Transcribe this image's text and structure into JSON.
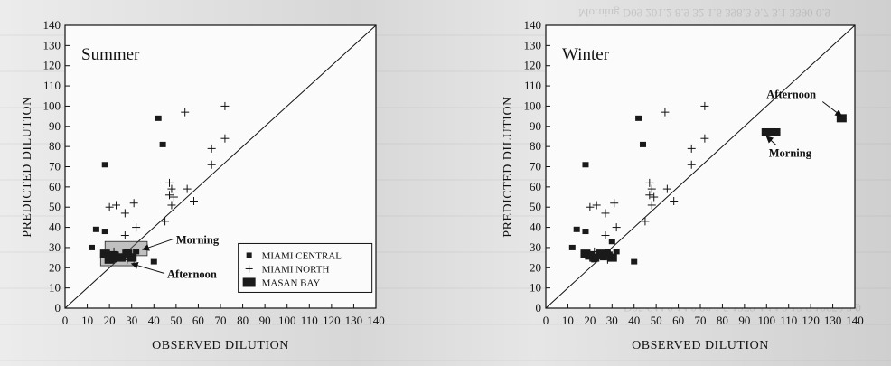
{
  "chart_data": [
    {
      "type": "scatter",
      "title": "Summer",
      "xlabel": "OBSERVED DILUTION",
      "ylabel": "PREDICTED DILUTION",
      "xlim": [
        0,
        140
      ],
      "ylim": [
        0,
        140
      ],
      "xticks": [
        0,
        10,
        20,
        30,
        40,
        50,
        60,
        70,
        80,
        90,
        100,
        110,
        120,
        130,
        140
      ],
      "yticks": [
        0,
        10,
        20,
        30,
        40,
        50,
        60,
        70,
        80,
        90,
        100,
        110,
        120,
        130,
        140
      ],
      "reference_line": "1:1",
      "legend_position": "bottom-right",
      "series": [
        {
          "name": "MIAMI CENTRAL",
          "marker": "square",
          "points": [
            [
              42,
              94
            ],
            [
              44,
              81
            ],
            [
              18,
              71
            ],
            [
              14,
              39
            ],
            [
              18,
              38
            ],
            [
              12,
              30
            ],
            [
              28,
              28
            ],
            [
              40,
              23
            ],
            [
              22,
              24
            ],
            [
              26,
              25
            ],
            [
              32,
              28
            ]
          ]
        },
        {
          "name": "MIAMI NORTH",
          "marker": "plus",
          "points": [
            [
              72,
              100
            ],
            [
              54,
              97
            ],
            [
              72,
              84
            ],
            [
              66,
              79
            ],
            [
              66,
              71
            ],
            [
              47,
              62
            ],
            [
              48,
              59
            ],
            [
              47,
              56
            ],
            [
              49,
              55
            ],
            [
              55,
              59
            ],
            [
              58,
              53
            ],
            [
              48,
              51
            ],
            [
              31,
              52
            ],
            [
              20,
              50
            ],
            [
              23,
              51
            ],
            [
              27,
              47
            ],
            [
              32,
              40
            ],
            [
              45,
              43
            ],
            [
              27,
              36
            ],
            [
              22,
              28
            ],
            [
              28,
              24
            ]
          ]
        },
        {
          "name": "MASAN BAY",
          "marker": "large-square",
          "points": [
            [
              18,
              27
            ],
            [
              22,
              26
            ],
            [
              25,
              25
            ],
            [
              28,
              27
            ],
            [
              20,
              24
            ],
            [
              30,
              25
            ]
          ]
        }
      ],
      "annotations": [
        {
          "text": "Morning",
          "x": 50,
          "y": 32,
          "points_to": [
            35,
            29
          ]
        },
        {
          "text": "Afternoon",
          "x": 46,
          "y": 15,
          "points_to": [
            30,
            22
          ]
        }
      ],
      "highlight_boxes": [
        {
          "label": "Morning",
          "x0": 18,
          "x1": 37,
          "y0": 26,
          "y1": 33
        },
        {
          "label": "Afternoon",
          "x0": 16,
          "x1": 31,
          "y0": 21,
          "y1": 27
        }
      ]
    },
    {
      "type": "scatter",
      "title": "Winter",
      "xlabel": "OBSERVED DILUTION",
      "ylabel": "PREDICTED DILUTION",
      "xlim": [
        0,
        140
      ],
      "ylim": [
        0,
        140
      ],
      "xticks": [
        0,
        10,
        20,
        30,
        40,
        50,
        60,
        70,
        80,
        90,
        100,
        110,
        120,
        130,
        140
      ],
      "yticks": [
        0,
        10,
        20,
        30,
        40,
        50,
        60,
        70,
        80,
        90,
        100,
        110,
        120,
        130,
        140
      ],
      "reference_line": "1:1",
      "series": [
        {
          "name": "MIAMI CENTRAL",
          "marker": "square",
          "points": [
            [
              42,
              94
            ],
            [
              44,
              81
            ],
            [
              18,
              71
            ],
            [
              14,
              39
            ],
            [
              18,
              38
            ],
            [
              12,
              30
            ],
            [
              28,
              28
            ],
            [
              40,
              23
            ],
            [
              22,
              24
            ],
            [
              26,
              25
            ],
            [
              32,
              28
            ],
            [
              30,
              33
            ]
          ]
        },
        {
          "name": "MIAMI NORTH",
          "marker": "plus",
          "points": [
            [
              72,
              100
            ],
            [
              54,
              97
            ],
            [
              72,
              84
            ],
            [
              66,
              79
            ],
            [
              66,
              71
            ],
            [
              47,
              62
            ],
            [
              48,
              59
            ],
            [
              47,
              56
            ],
            [
              49,
              55
            ],
            [
              55,
              59
            ],
            [
              58,
              53
            ],
            [
              48,
              51
            ],
            [
              31,
              52
            ],
            [
              20,
              50
            ],
            [
              23,
              51
            ],
            [
              27,
              47
            ],
            [
              32,
              40
            ],
            [
              45,
              43
            ],
            [
              27,
              36
            ],
            [
              22,
              28
            ],
            [
              28,
              24
            ]
          ]
        },
        {
          "name": "MASAN BAY",
          "marker": "large-square",
          "points": [
            [
              18,
              27
            ],
            [
              20,
              26
            ],
            [
              22,
              25
            ],
            [
              25,
              27
            ],
            [
              28,
              26
            ],
            [
              30,
              25
            ],
            [
              100,
              87
            ],
            [
              102,
              87
            ],
            [
              104,
              87
            ],
            [
              134,
              94
            ]
          ]
        }
      ],
      "annotations": [
        {
          "text": "Afternoon",
          "x": 100,
          "y": 104,
          "points_to": [
            134,
            95
          ]
        },
        {
          "text": "Morning",
          "x": 101,
          "y": 75,
          "points_to": [
            100,
            85
          ]
        }
      ]
    }
  ]
}
